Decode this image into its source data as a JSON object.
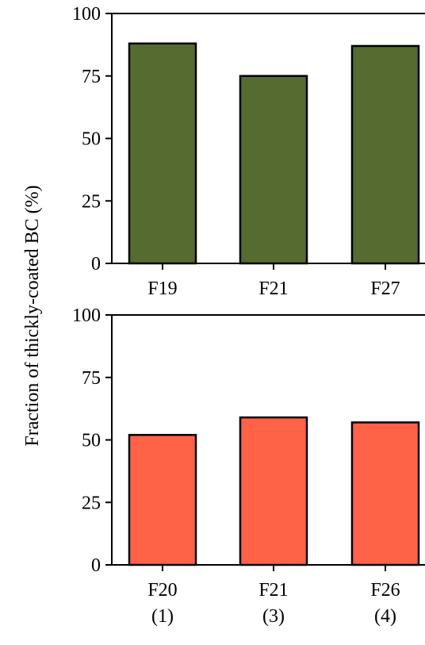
{
  "chart_data": [
    {
      "type": "bar",
      "ylabel": "Fraction of thickly-coated BC (%)",
      "ylim": [
        0,
        100
      ],
      "yticks": [
        0,
        25,
        50,
        75,
        100
      ],
      "categories": [
        "F19",
        "F21",
        "F27"
      ],
      "values": [
        88,
        75,
        87
      ],
      "bar_color": "#556b2f"
    },
    {
      "type": "bar",
      "ylabel": "Fraction of thickly-coated BC (%)",
      "ylim": [
        0,
        100
      ],
      "yticks": [
        0,
        25,
        50,
        75,
        100
      ],
      "categories": [
        "F20",
        "F21",
        "F26"
      ],
      "category_sublabels": [
        "(1)",
        "(3)",
        "(4)"
      ],
      "values": [
        52,
        59,
        57
      ],
      "bar_color": "#ff6347"
    }
  ]
}
